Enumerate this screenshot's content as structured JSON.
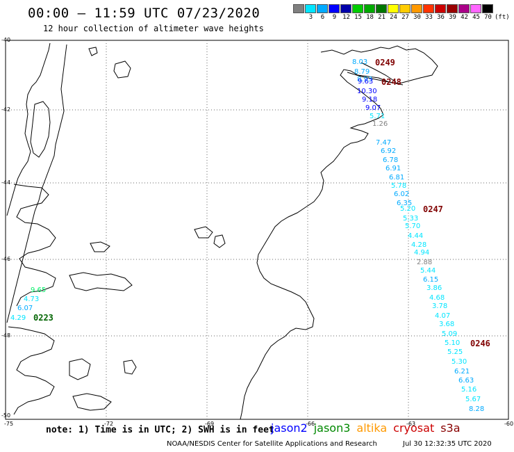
{
  "header": {
    "title": "00:00 – 11:59 UTC 07/23/2020",
    "subtitle": "12 hour collection of altimeter wave heights"
  },
  "legend": {
    "unit": "(ft)",
    "bins": [
      {
        "label": "",
        "color": "#808080"
      },
      {
        "label": "3",
        "color": "#00e5ff"
      },
      {
        "label": "6",
        "color": "#00aaff"
      },
      {
        "label": "9",
        "color": "#0000ff"
      },
      {
        "label": "12",
        "color": "#0000aa"
      },
      {
        "label": "15",
        "color": "#00cc00"
      },
      {
        "label": "18",
        "color": "#00aa00"
      },
      {
        "label": "21",
        "color": "#007700"
      },
      {
        "label": "24",
        "color": "#ffff00"
      },
      {
        "label": "27",
        "color": "#ffcc00"
      },
      {
        "label": "30",
        "color": "#ff9900"
      },
      {
        "label": "33",
        "color": "#ff3300"
      },
      {
        "label": "36",
        "color": "#cc0000"
      },
      {
        "label": "39",
        "color": "#990000"
      },
      {
        "label": "42",
        "color": "#aa0088"
      },
      {
        "label": "45",
        "color": "#ff66ff"
      },
      {
        "label": "70",
        "color": "#000000"
      }
    ]
  },
  "axes": {
    "lat_labels": [
      "-40",
      "-42",
      "-44",
      "-46",
      "-48",
      "-50"
    ],
    "lon_labels": [
      "-75",
      "-72",
      "-69",
      "-66",
      "-63",
      "-60"
    ]
  },
  "passes": [
    {
      "id": "0249",
      "color": "#800000"
    },
    {
      "id": "0248",
      "color": "#800000"
    },
    {
      "id": "0247",
      "color": "#800000"
    },
    {
      "id": "0246",
      "color": "#800000"
    },
    {
      "id": "0223",
      "color": "#006400"
    }
  ],
  "measurements": {
    "north_track": [
      {
        "v": "8.03",
        "c": "#00aaff"
      },
      {
        "v": "8.79",
        "c": "#00aaff"
      },
      {
        "v": "8.93",
        "c": "#00aaff"
      },
      {
        "v": "9.63",
        "c": "#0000ff"
      },
      {
        "v": "10.30",
        "c": "#0000ff"
      },
      {
        "v": "9.18",
        "c": "#0000ff"
      },
      {
        "v": "9.07",
        "c": "#0000ff"
      },
      {
        "v": "5.71",
        "c": "#00e5ff"
      },
      {
        "v": "1.26",
        "c": "#808080"
      }
    ],
    "main_track": [
      {
        "v": "7.47",
        "c": "#00aaff"
      },
      {
        "v": "6.92",
        "c": "#00aaff"
      },
      {
        "v": "6.78",
        "c": "#00aaff"
      },
      {
        "v": "6.91",
        "c": "#00aaff"
      },
      {
        "v": "6.81",
        "c": "#00aaff"
      },
      {
        "v": "5.78",
        "c": "#00e5ff"
      },
      {
        "v": "6.02",
        "c": "#00aaff"
      },
      {
        "v": "6.35",
        "c": "#00aaff"
      },
      {
        "v": "5.20",
        "c": "#00e5ff"
      },
      {
        "v": "5.33",
        "c": "#00e5ff"
      },
      {
        "v": "5.70",
        "c": "#00e5ff"
      },
      {
        "v": "4.44",
        "c": "#00e5ff"
      },
      {
        "v": "4.28",
        "c": "#00e5ff"
      },
      {
        "v": "4.94",
        "c": "#00e5ff"
      },
      {
        "v": "2.88",
        "c": "#808080"
      },
      {
        "v": "5.44",
        "c": "#00e5ff"
      },
      {
        "v": "6.15",
        "c": "#00aaff"
      },
      {
        "v": "3.86",
        "c": "#00e5ff"
      },
      {
        "v": "4.68",
        "c": "#00e5ff"
      },
      {
        "v": "3.78",
        "c": "#00e5ff"
      },
      {
        "v": "4.07",
        "c": "#00e5ff"
      },
      {
        "v": "3.68",
        "c": "#00e5ff"
      },
      {
        "v": "5.09",
        "c": "#00e5ff"
      },
      {
        "v": "5.10",
        "c": "#00e5ff"
      },
      {
        "v": "5.25",
        "c": "#00e5ff"
      },
      {
        "v": "5.30",
        "c": "#00e5ff"
      },
      {
        "v": "6.21",
        "c": "#00aaff"
      },
      {
        "v": "6.63",
        "c": "#00aaff"
      },
      {
        "v": "5.16",
        "c": "#00e5ff"
      },
      {
        "v": "5.67",
        "c": "#00e5ff"
      },
      {
        "v": "8.28",
        "c": "#00aaff"
      }
    ],
    "west_track": [
      {
        "v": "9.65",
        "c": "#00ee66"
      },
      {
        "v": "4.73",
        "c": "#00e5ff"
      },
      {
        "v": "6.07",
        "c": "#00aaff"
      },
      {
        "v": "4.29",
        "c": "#00e5ff"
      }
    ]
  },
  "footer": {
    "note": "note: 1) Time is in UTC; 2) SWH is in feet",
    "missions": [
      {
        "name": "jason2",
        "color": "#0000ff"
      },
      {
        "name": "jason3",
        "color": "#008800"
      },
      {
        "name": "altika",
        "color": "#ff9900"
      },
      {
        "name": "cryosat",
        "color": "#cc0000"
      },
      {
        "name": "s3a",
        "color": "#880000"
      }
    ],
    "credit": "NOAA/NESDIS Center for Satellite Applications and Research",
    "timestamp": "Jul 30 12:32:35 UTC 2020"
  }
}
